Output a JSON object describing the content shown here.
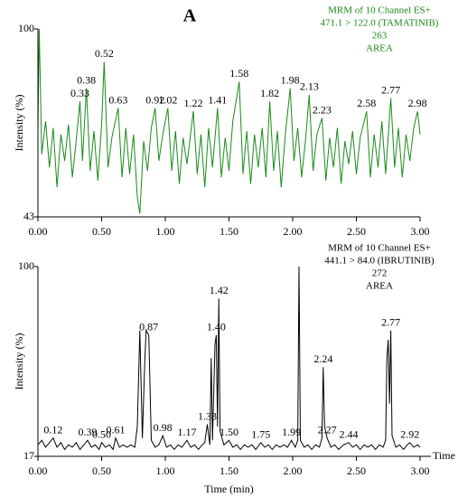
{
  "chart_data": [
    {
      "type": "line",
      "title": "A",
      "ylabel": "Intensity  (%)",
      "annotations": [
        "MRM of 10 Channel ES+",
        "471.1  >  122.0 (TAMATINIB)",
        "263",
        "AREA"
      ],
      "color": "#1a8a1a",
      "xlim": [
        0,
        3
      ],
      "ylim": [
        43,
        100
      ],
      "xticks": [
        {
          "value": 0,
          "label": "0.00"
        },
        {
          "value": 0.5,
          "label": "0.50"
        },
        {
          "value": 1,
          "label": "1.00"
        },
        {
          "value": 1.5,
          "label": "1.50"
        },
        {
          "value": 2,
          "label": "2.00"
        },
        {
          "value": 2.5,
          "label": "2.50"
        },
        {
          "value": 3,
          "label": "3.00"
        }
      ],
      "yticks": [
        43,
        100
      ],
      "x": [
        0,
        0.01,
        0.03,
        0.06,
        0.09,
        0.12,
        0.15,
        0.18,
        0.21,
        0.24,
        0.27,
        0.3,
        0.33,
        0.35,
        0.38,
        0.41,
        0.44,
        0.47,
        0.5,
        0.52,
        0.55,
        0.58,
        0.63,
        0.66,
        0.69,
        0.72,
        0.75,
        0.78,
        0.8,
        0.83,
        0.86,
        0.89,
        0.92,
        0.95,
        0.98,
        1.02,
        1.05,
        1.08,
        1.11,
        1.14,
        1.17,
        1.22,
        1.25,
        1.28,
        1.31,
        1.34,
        1.37,
        1.41,
        1.44,
        1.47,
        1.5,
        1.53,
        1.58,
        1.61,
        1.64,
        1.67,
        1.7,
        1.73,
        1.76,
        1.79,
        1.82,
        1.85,
        1.88,
        1.91,
        1.94,
        1.98,
        2.01,
        2.04,
        2.07,
        2.1,
        2.13,
        2.16,
        2.19,
        2.23,
        2.26,
        2.29,
        2.32,
        2.35,
        2.38,
        2.41,
        2.44,
        2.47,
        2.5,
        2.53,
        2.58,
        2.61,
        2.64,
        2.67,
        2.7,
        2.73,
        2.77,
        2.8,
        2.83,
        2.86,
        2.89,
        2.92,
        2.95,
        2.98,
        3.0
      ],
      "values": [
        70,
        100,
        62,
        72,
        58,
        70,
        52,
        68,
        60,
        71,
        55,
        66,
        78,
        60,
        82,
        57,
        69,
        54,
        71,
        90,
        58,
        67,
        76,
        55,
        70,
        56,
        68,
        49,
        44,
        66,
        57,
        70,
        76,
        60,
        68,
        76,
        57,
        69,
        53,
        67,
        59,
        75,
        56,
        68,
        52,
        70,
        58,
        76,
        55,
        67,
        57,
        72,
        84,
        56,
        69,
        53,
        68,
        58,
        70,
        55,
        78,
        57,
        69,
        52,
        67,
        82,
        60,
        70,
        55,
        66,
        80,
        57,
        68,
        73,
        54,
        67,
        58,
        70,
        53,
        66,
        59,
        69,
        56,
        67,
        75,
        55,
        68,
        58,
        72,
        56,
        79,
        58,
        70,
        55,
        68,
        60,
        70,
        75,
        68
      ],
      "peak_times": [
        0.33,
        0.38,
        0.52,
        0.63,
        0.92,
        1.02,
        1.22,
        1.41,
        1.58,
        1.82,
        1.98,
        2.13,
        2.23,
        2.58,
        2.77,
        2.98
      ]
    },
    {
      "type": "line",
      "ylabel": "Intensity  (%)",
      "xlabel": "Time  (min)",
      "x_axis_end_label": "Time",
      "annotations": [
        "MRM of 10 Channel ES+",
        "441.1  >  84.0 (IBRUTINIB)",
        "272",
        "AREA"
      ],
      "color": "#000000",
      "xlim": [
        0,
        3
      ],
      "ylim": [
        17,
        100
      ],
      "xticks": [
        {
          "value": 0,
          "label": "0.00"
        },
        {
          "value": 0.5,
          "label": "0.50"
        },
        {
          "value": 1,
          "label": "1.00"
        },
        {
          "value": 1.5,
          "label": "1.50"
        },
        {
          "value": 2,
          "label": "2.00"
        },
        {
          "value": 2.5,
          "label": "2.50"
        },
        {
          "value": 3,
          "label": "3.00"
        }
      ],
      "yticks": [
        17,
        100
      ],
      "x": [
        0,
        0.03,
        0.06,
        0.09,
        0.12,
        0.15,
        0.18,
        0.21,
        0.24,
        0.27,
        0.3,
        0.33,
        0.36,
        0.39,
        0.42,
        0.45,
        0.48,
        0.5,
        0.53,
        0.56,
        0.59,
        0.61,
        0.64,
        0.67,
        0.7,
        0.73,
        0.76,
        0.78,
        0.8,
        0.82,
        0.84,
        0.85,
        0.87,
        0.89,
        0.92,
        0.95,
        0.98,
        1.01,
        1.04,
        1.07,
        1.1,
        1.13,
        1.17,
        1.2,
        1.23,
        1.26,
        1.29,
        1.31,
        1.33,
        1.35,
        1.36,
        1.37,
        1.39,
        1.4,
        1.41,
        1.42,
        1.43,
        1.46,
        1.5,
        1.53,
        1.56,
        1.59,
        1.62,
        1.65,
        1.68,
        1.71,
        1.75,
        1.78,
        1.81,
        1.84,
        1.87,
        1.9,
        1.93,
        1.96,
        1.99,
        2.02,
        2.04,
        2.05,
        2.06,
        2.09,
        2.12,
        2.15,
        2.18,
        2.21,
        2.23,
        2.24,
        2.25,
        2.27,
        2.3,
        2.33,
        2.36,
        2.4,
        2.44,
        2.47,
        2.5,
        2.53,
        2.56,
        2.59,
        2.62,
        2.65,
        2.68,
        2.71,
        2.73,
        2.74,
        2.75,
        2.76,
        2.77,
        2.78,
        2.81,
        2.84,
        2.87,
        2.9,
        2.92,
        2.95,
        2.98,
        3.0
      ],
      "values": [
        22,
        24,
        21,
        23,
        25,
        21,
        23,
        20,
        22,
        21,
        23,
        20,
        22,
        24,
        21,
        22,
        20,
        23,
        21,
        22,
        20,
        25,
        21,
        22,
        21,
        22,
        21,
        30,
        72,
        25,
        60,
        72,
        70,
        24,
        21,
        22,
        26,
        21,
        22,
        20,
        22,
        21,
        24,
        21,
        22,
        20,
        22,
        23,
        31,
        22,
        60,
        24,
        66,
        70,
        30,
        86,
        28,
        22,
        24,
        21,
        22,
        20,
        22,
        21,
        22,
        20,
        23,
        21,
        22,
        20,
        22,
        21,
        22,
        21,
        24,
        21,
        24,
        100,
        24,
        21,
        22,
        20,
        22,
        21,
        25,
        56,
        30,
        25,
        21,
        22,
        20,
        22,
        23,
        21,
        22,
        20,
        22,
        21,
        22,
        20,
        22,
        21,
        24,
        60,
        68,
        40,
        72,
        26,
        21,
        22,
        20,
        22,
        23,
        21,
        22,
        21
      ],
      "peak_times": [
        0.12,
        0.39,
        {
          "value": 0.5,
          "label": "0.50"
        },
        0.61,
        0.87,
        0.98,
        1.17,
        1.33,
        {
          "value": 1.4,
          "label": "1.40"
        },
        1.42,
        {
          "value": 1.5,
          "label": "1.50"
        },
        1.75,
        1.99,
        2.24,
        2.27,
        2.44,
        2.77,
        2.92
      ]
    }
  ]
}
